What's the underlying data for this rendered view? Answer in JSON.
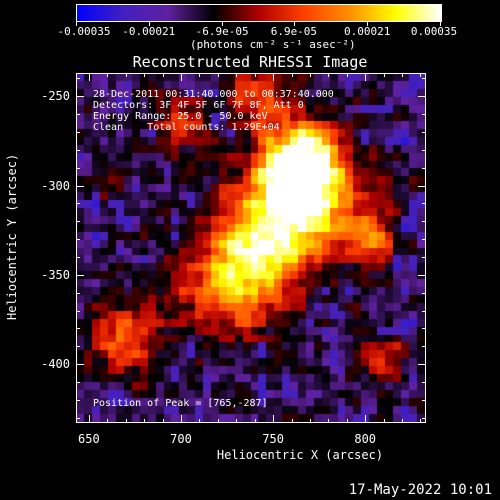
{
  "colorbar": {
    "min": -0.00035,
    "max": 0.00035,
    "tick_labels": [
      "-0.00035",
      "-0.00021",
      "-6.9e-05",
      "6.9e-05",
      "0.00021",
      "0.00035"
    ],
    "tick_values": [
      -0.00035,
      -0.00021,
      -6.9e-05,
      6.9e-05,
      0.00021,
      0.00035
    ],
    "unit": "(photons cm⁻² s⁻¹ asec⁻²)",
    "colors": [
      "#0000ff",
      "#4020c0",
      "#6020a0",
      "#000000",
      "#b00000",
      "#ff4000",
      "#ff9000",
      "#ffff00",
      "#ffffff"
    ]
  },
  "chart_data": {
    "type": "heatmap",
    "title": "Reconstructed RHESSI Image",
    "xlabel": "Heliocentric X (arcsec)",
    "ylabel": "Heliocentric Y (arcsec)",
    "xlim": [
      643,
      833
    ],
    "ylim": [
      -433,
      -237
    ],
    "x_ticks": [
      650,
      700,
      750,
      800
    ],
    "y_ticks": [
      -250,
      -300,
      -350,
      -400
    ],
    "x_tick_labels": [
      "650",
      "700",
      "750",
      "800"
    ],
    "y_tick_labels": [
      "-250",
      "-300",
      "-350",
      "-400"
    ],
    "annotations": [
      "28-Dec-2011 00:31:40.000 to 00:37:40.000",
      "Detectors: 3F 4F 5F 6F 7F 8F, Att 0",
      "Energy Range: 25.0 - 50.0 keV",
      "Clean    Total counts: 1.29E+04"
    ],
    "peak_label": "Position of Peak = [765,-287]",
    "peak": [
      765,
      -287
    ]
  },
  "timestamp": "17-May-2022 10:01"
}
